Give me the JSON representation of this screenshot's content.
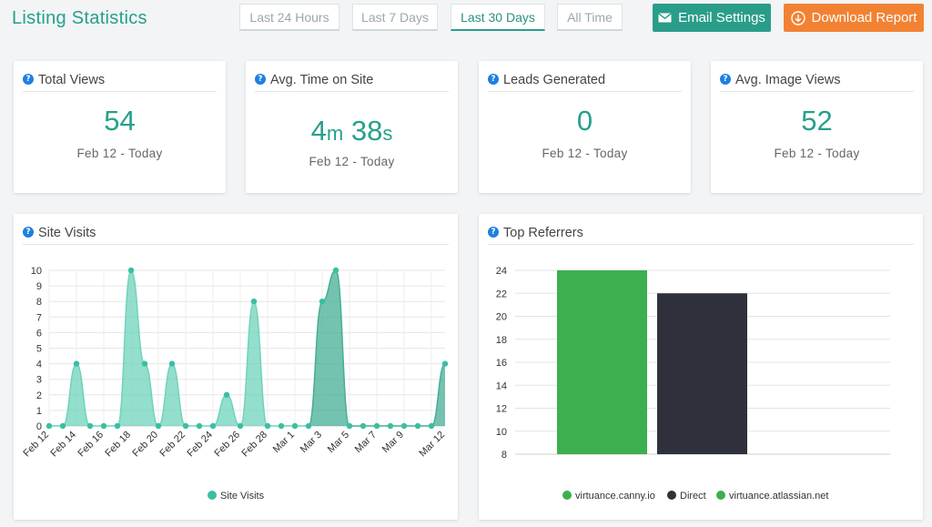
{
  "header": {
    "title": "Listing Statistics",
    "ranges": [
      "Last 24 Hours",
      "Last 7 Days",
      "Last 30 Days",
      "All Time"
    ],
    "active_range": "Last 30 Days",
    "email_button": "Email Settings",
    "download_button": "Download Report"
  },
  "colors": {
    "accent": "#26a08b",
    "email_button": "#2a9d8a",
    "download_button": "#f28233",
    "help_icon": "#1f7fe0"
  },
  "stats": [
    {
      "label": "Total Views",
      "value": "54",
      "sub": "Feb 12 - Today"
    },
    {
      "label": "Avg. Time on Site",
      "value_min": "4",
      "unit_min": "m",
      "value_sec": "38",
      "unit_sec": "s",
      "sub": "Feb 12 - Today"
    },
    {
      "label": "Leads Generated",
      "value": "0",
      "sub": "Feb 12 - Today"
    },
    {
      "label": "Avg. Image Views",
      "value": "52",
      "sub": "Feb 12 - Today"
    }
  ],
  "site_visits_title": "Site Visits",
  "top_referrers_title": "Top Referrers",
  "chart_data": [
    {
      "type": "area",
      "x": [
        "Feb 12",
        "Feb 13",
        "Feb 14",
        "Feb 15",
        "Feb 16",
        "Feb 17",
        "Feb 18",
        "Feb 19",
        "Feb 20",
        "Feb 21",
        "Feb 22",
        "Feb 23",
        "Feb 24",
        "Feb 25",
        "Feb 26",
        "Feb 27",
        "Feb 28",
        "Feb 29",
        "Mar 1",
        "Mar 2",
        "Mar 3",
        "Mar 4",
        "Mar 5",
        "Mar 6",
        "Mar 7",
        "Mar 8",
        "Mar 9",
        "Mar 10",
        "Mar 11",
        "Mar 12"
      ],
      "tick_labels": [
        "Feb 12",
        "Feb 14",
        "Feb 16",
        "Feb 18",
        "Feb 20",
        "Feb 22",
        "Feb 24",
        "Feb 26",
        "Feb 28",
        "Mar 1",
        "Mar 3",
        "Mar 5",
        "Mar 7",
        "Mar 9",
        "Mar 12"
      ],
      "series": [
        {
          "name": "Site Visits",
          "values": [
            0,
            0,
            4,
            0,
            0,
            0,
            10,
            4,
            0,
            4,
            0,
            0,
            0,
            2,
            0,
            8,
            0,
            0,
            0,
            0,
            8,
            10,
            0,
            0,
            0,
            0,
            0,
            0,
            0,
            4
          ]
        }
      ],
      "ylim": [
        0,
        10
      ],
      "yticks": [
        0,
        1,
        2,
        3,
        4,
        5,
        6,
        7,
        8,
        9,
        10
      ],
      "grid": true,
      "legend": "bottom",
      "colors": {
        "early": "#6fd3bc",
        "late": "#45ae95",
        "point": "#3bbfa0"
      }
    },
    {
      "type": "bar",
      "categories": [
        "virtuance.canny.io",
        "Direct"
      ],
      "values": [
        24,
        22
      ],
      "legend_entries": [
        {
          "name": "virtuance.canny.io",
          "color": "#3eaf4f"
        },
        {
          "name": "Direct",
          "color": "#2e313b"
        },
        {
          "name": "virtuance.atlassian.net",
          "color": "#3eaf4f"
        }
      ],
      "ylim": [
        8,
        24
      ],
      "yticks": [
        8,
        10,
        12,
        14,
        16,
        18,
        20,
        22,
        24
      ],
      "grid": true,
      "legend": "bottom"
    }
  ]
}
